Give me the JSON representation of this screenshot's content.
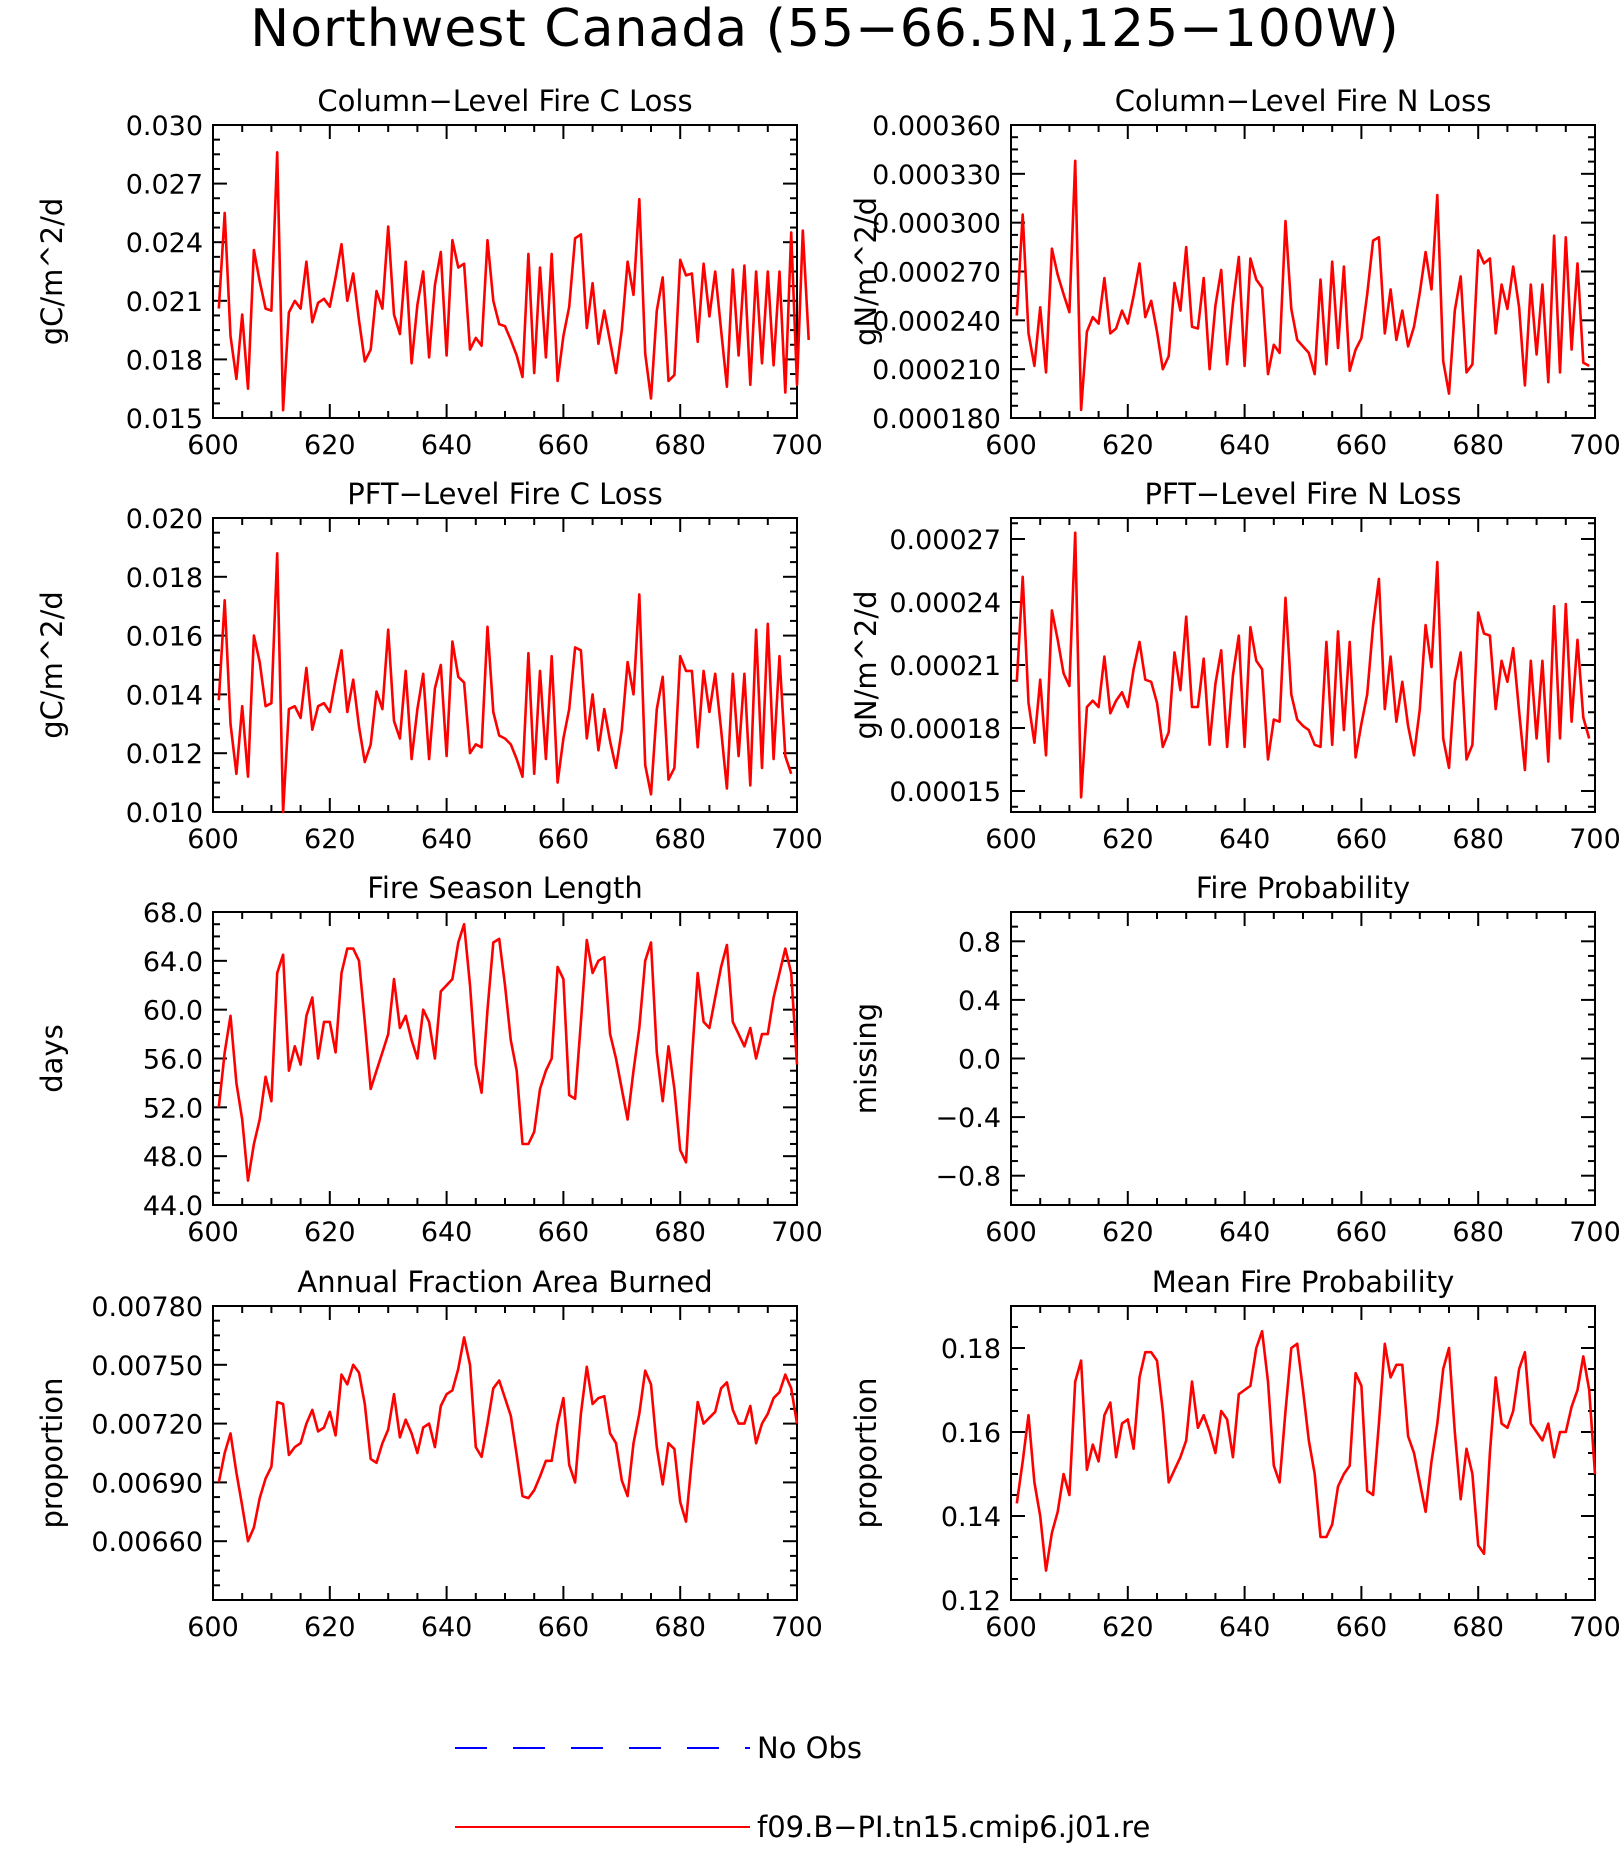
{
  "title": "Northwest Canada (55−66.5N,125−100W)",
  "colors": {
    "model": "#ff0000",
    "obs": "#0000ff",
    "axis": "#000000"
  },
  "legend": {
    "obs_label": "No Obs",
    "model_label": "f09.B−PI.tn15.cmip6.j01.re"
  },
  "chart_data": [
    {
      "type": "line",
      "title": "Column−Level Fire C Loss",
      "ylabel": "gC/m^2/d",
      "xlim": [
        600,
        700
      ],
      "xticks": [
        600,
        620,
        640,
        660,
        680,
        700
      ],
      "ylim": [
        0.015,
        0.03
      ],
      "yticks": [
        "0.015",
        "0.018",
        "0.021",
        "0.024",
        "0.027",
        "0.030"
      ],
      "x_start": 601,
      "series": [
        {
          "values": [
            0.0206,
            0.0255,
            0.0192,
            0.017,
            0.0203,
            0.0165,
            0.0236,
            0.022,
            0.0206,
            0.0205,
            0.0286,
            0.0154,
            0.0204,
            0.021,
            0.0206,
            0.023,
            0.0199,
            0.0209,
            0.0211,
            0.0207,
            0.0222,
            0.0239,
            0.021,
            0.0224,
            0.02,
            0.0179,
            0.0185,
            0.0215,
            0.0206,
            0.0248,
            0.0203,
            0.0193,
            0.023,
            0.0178,
            0.0208,
            0.0225,
            0.0181,
            0.0218,
            0.0235,
            0.0182,
            0.0241,
            0.0227,
            0.0229,
            0.0185,
            0.0191,
            0.0187,
            0.0241,
            0.021,
            0.0198,
            0.0197,
            0.019,
            0.0182,
            0.0171,
            0.0234,
            0.0173,
            0.0227,
            0.0181,
            0.0234,
            0.0169,
            0.0192,
            0.0207,
            0.0242,
            0.0244,
            0.0196,
            0.0219,
            0.0188,
            0.0205,
            0.0189,
            0.0173,
            0.0195,
            0.023,
            0.0213,
            0.0262,
            0.0183,
            0.016,
            0.0205,
            0.0222,
            0.0169,
            0.0172,
            0.0231,
            0.0223,
            0.0224,
            0.0189,
            0.0229,
            0.0202,
            0.0225,
            0.0195,
            0.0166,
            0.0226,
            0.0182,
            0.0228,
            0.0167,
            0.0225,
            0.0178,
            0.0225,
            0.0177,
            0.0225,
            0.0163,
            0.0245,
            0.0167,
            0.0246,
            0.019
          ]
        }
      ]
    },
    {
      "type": "line",
      "title": "Column−Level Fire N Loss",
      "ylabel": "gN/m^2/d",
      "xlim": [
        600,
        700
      ],
      "xticks": [
        600,
        620,
        640,
        660,
        680,
        700
      ],
      "ylim": [
        0.00018,
        0.00036
      ],
      "yticks": [
        "0.000180",
        "0.000210",
        "0.000240",
        "0.000270",
        "0.000300",
        "0.000330",
        "0.000360"
      ],
      "x_start": 601,
      "series": [
        {
          "values": [
            0.000243,
            0.000305,
            0.000232,
            0.000212,
            0.000248,
            0.000208,
            0.000284,
            0.000268,
            0.000256,
            0.000245,
            0.000338,
            0.000185,
            0.000233,
            0.000242,
            0.000238,
            0.000266,
            0.000232,
            0.000235,
            0.000246,
            0.000238,
            0.000255,
            0.000275,
            0.000242,
            0.000252,
            0.000233,
            0.00021,
            0.000218,
            0.000263,
            0.000246,
            0.000285,
            0.000236,
            0.000235,
            0.000266,
            0.00021,
            0.000249,
            0.000271,
            0.000213,
            0.00025,
            0.000279,
            0.000212,
            0.000278,
            0.000265,
            0.00026,
            0.000207,
            0.000225,
            0.00022,
            0.000301,
            0.000247,
            0.000228,
            0.000224,
            0.00022,
            0.000207,
            0.000265,
            0.000213,
            0.000276,
            0.000223,
            0.000273,
            0.000209,
            0.000222,
            0.000229,
            0.000256,
            0.000289,
            0.000291,
            0.000232,
            0.000259,
            0.000228,
            0.000246,
            0.000224,
            0.000236,
            0.000257,
            0.000282,
            0.000259,
            0.000317,
            0.000215,
            0.000195,
            0.000246,
            0.000267,
            0.000208,
            0.000213,
            0.000283,
            0.000275,
            0.000278,
            0.000232,
            0.000262,
            0.000247,
            0.000273,
            0.000248,
            0.0002,
            0.000262,
            0.000219,
            0.000262,
            0.000202,
            0.000292,
            0.000208,
            0.000291,
            0.000222,
            0.000275,
            0.000214,
            0.000212
          ]
        }
      ]
    },
    {
      "type": "line",
      "title": "PFT−Level Fire C Loss",
      "ylabel": "gC/m^2/d",
      "xlim": [
        600,
        700
      ],
      "xticks": [
        600,
        620,
        640,
        660,
        680,
        700
      ],
      "ylim": [
        0.01,
        0.02
      ],
      "yticks": [
        "0.010",
        "0.012",
        "0.014",
        "0.016",
        "0.018",
        "0.020"
      ],
      "x_start": 601,
      "series": [
        {
          "values": [
            0.0138,
            0.0172,
            0.013,
            0.0113,
            0.0136,
            0.0112,
            0.016,
            0.0151,
            0.0136,
            0.0137,
            0.0188,
            0.01,
            0.0135,
            0.0136,
            0.0132,
            0.0149,
            0.0128,
            0.0136,
            0.0137,
            0.0134,
            0.0145,
            0.0155,
            0.0134,
            0.0145,
            0.0129,
            0.0117,
            0.0123,
            0.0141,
            0.0135,
            0.0162,
            0.0131,
            0.0125,
            0.0148,
            0.0118,
            0.0135,
            0.0147,
            0.0118,
            0.0142,
            0.015,
            0.0119,
            0.0158,
            0.0146,
            0.0144,
            0.012,
            0.0123,
            0.0122,
            0.0163,
            0.0134,
            0.0126,
            0.0125,
            0.0123,
            0.0118,
            0.0112,
            0.0154,
            0.0113,
            0.0148,
            0.0118,
            0.0153,
            0.011,
            0.0125,
            0.0135,
            0.0156,
            0.0155,
            0.0125,
            0.014,
            0.0121,
            0.0135,
            0.0124,
            0.0115,
            0.0128,
            0.0151,
            0.014,
            0.0174,
            0.0116,
            0.0106,
            0.0135,
            0.0146,
            0.0111,
            0.0115,
            0.0153,
            0.0148,
            0.0148,
            0.0122,
            0.0148,
            0.0134,
            0.0147,
            0.0128,
            0.0108,
            0.0147,
            0.0119,
            0.0147,
            0.0109,
            0.0162,
            0.0115,
            0.0164,
            0.0118,
            0.0153,
            0.0119,
            0.0113
          ]
        }
      ]
    },
    {
      "type": "line",
      "title": "PFT−Level Fire N Loss",
      "ylabel": "gN/m^2/d",
      "xlim": [
        600,
        700
      ],
      "xticks": [
        600,
        620,
        640,
        660,
        680,
        700
      ],
      "ylim": [
        0.00014,
        0.00028
      ],
      "yticks": [
        "0.00015",
        "0.00018",
        "0.00021",
        "0.00024",
        "0.00027"
      ],
      "x_start": 601,
      "series": [
        {
          "values": [
            0.000202,
            0.000252,
            0.000192,
            0.000173,
            0.000203,
            0.000167,
            0.000236,
            0.000222,
            0.000206,
            0.0002,
            0.000273,
            0.000147,
            0.00019,
            0.000193,
            0.00019,
            0.000214,
            0.000187,
            0.000193,
            0.000197,
            0.00019,
            0.000208,
            0.000221,
            0.000203,
            0.000202,
            0.000192,
            0.000171,
            0.000178,
            0.000216,
            0.000198,
            0.000233,
            0.00019,
            0.00019,
            0.000213,
            0.000172,
            0.000201,
            0.000217,
            0.000171,
            0.000205,
            0.000224,
            0.000171,
            0.000228,
            0.000212,
            0.000208,
            0.000165,
            0.000184,
            0.000183,
            0.000242,
            0.000196,
            0.000184,
            0.000181,
            0.000179,
            0.000172,
            0.000171,
            0.000221,
            0.000172,
            0.000226,
            0.000179,
            0.000221,
            0.000166,
            0.000182,
            0.000196,
            0.000229,
            0.000251,
            0.000189,
            0.000214,
            0.000183,
            0.000202,
            0.000181,
            0.000167,
            0.000189,
            0.000229,
            0.000209,
            0.000259,
            0.000175,
            0.000161,
            0.000202,
            0.000216,
            0.000165,
            0.000172,
            0.000235,
            0.000225,
            0.000224,
            0.000189,
            0.000212,
            0.000202,
            0.000218,
            0.000188,
            0.00016,
            0.000212,
            0.000175,
            0.000212,
            0.000164,
            0.000238,
            0.000175,
            0.000239,
            0.000183,
            0.000222,
            0.000185,
            0.000175
          ]
        }
      ]
    },
    {
      "type": "line",
      "title": "Fire Season Length",
      "ylabel": "days",
      "xlim": [
        600,
        700
      ],
      "xticks": [
        600,
        620,
        640,
        660,
        680,
        700
      ],
      "ylim": [
        44,
        68
      ],
      "yticks": [
        "44.0",
        "48.0",
        "52.0",
        "56.0",
        "60.0",
        "64.0",
        "68.0"
      ],
      "x_start": 601,
      "series": [
        {
          "values": [
            52.0,
            56.5,
            59.5,
            54,
            51,
            46,
            49,
            51,
            54.5,
            52.5,
            63,
            64.5,
            55,
            57,
            55.5,
            59.5,
            61,
            56,
            59,
            59,
            56.5,
            63,
            65,
            65,
            64,
            59,
            53.5,
            55,
            56.5,
            58,
            62.5,
            58.5,
            59.5,
            57.5,
            56,
            60,
            59,
            56,
            61.5,
            62,
            62.5,
            65.5,
            67,
            62,
            55.5,
            53.2,
            60,
            65.5,
            65.8,
            62,
            57.5,
            55,
            49,
            49,
            50,
            53.5,
            55,
            56,
            63.5,
            62.5,
            53,
            52.7,
            59,
            65.7,
            63,
            64,
            64.3,
            58,
            56,
            53.5,
            51,
            55,
            58.5,
            64,
            65.5,
            56.5,
            52.5,
            57,
            53.5,
            48.5,
            47.5,
            56,
            63,
            59,
            58.5,
            61,
            63.5,
            65.3,
            59,
            58,
            57,
            58.5,
            56,
            58,
            58,
            61,
            63,
            65,
            63,
            55.5
          ]
        }
      ]
    },
    {
      "type": "line",
      "title": "Fire Probability",
      "ylabel": "missing",
      "xlim": [
        600,
        700
      ],
      "xticks": [
        600,
        620,
        640,
        660,
        680,
        700
      ],
      "ylim": [
        -1,
        1
      ],
      "yticks": [
        "−0.8",
        "−0.4",
        "0.0",
        "0.4",
        "0.8"
      ],
      "series": []
    },
    {
      "type": "line",
      "title": "Annual Fraction Area Burned",
      "ylabel": "proportion",
      "xlim": [
        600,
        700
      ],
      "xticks": [
        600,
        620,
        640,
        660,
        680,
        700
      ],
      "ylim": [
        0.0063,
        0.0078
      ],
      "yticks": [
        "0.00660",
        "0.00690",
        "0.00720",
        "0.00750",
        "0.00780"
      ],
      "x_start": 601,
      "series": [
        {
          "values": [
            0.0069,
            0.00705,
            0.00715,
            0.00695,
            0.00678,
            0.0066,
            0.00667,
            0.00682,
            0.00692,
            0.00698,
            0.00731,
            0.0073,
            0.00704,
            0.00708,
            0.0071,
            0.0072,
            0.00727,
            0.00716,
            0.00718,
            0.00726,
            0.00714,
            0.00745,
            0.0074,
            0.0075,
            0.00746,
            0.0073,
            0.00702,
            0.007,
            0.0071,
            0.00717,
            0.00735,
            0.00713,
            0.00722,
            0.00715,
            0.00705,
            0.00718,
            0.0072,
            0.00708,
            0.00729,
            0.00735,
            0.00737,
            0.00748,
            0.00764,
            0.0075,
            0.00708,
            0.00703,
            0.0072,
            0.00738,
            0.00742,
            0.00733,
            0.00724,
            0.00704,
            0.00683,
            0.00682,
            0.00686,
            0.00693,
            0.00701,
            0.00701,
            0.0072,
            0.00733,
            0.00699,
            0.0069,
            0.00725,
            0.00749,
            0.0073,
            0.00733,
            0.00734,
            0.00715,
            0.0071,
            0.00691,
            0.00683,
            0.0071,
            0.00725,
            0.00747,
            0.0074,
            0.00708,
            0.00689,
            0.0071,
            0.00707,
            0.0068,
            0.0067,
            0.00702,
            0.00731,
            0.0072,
            0.00723,
            0.00726,
            0.00738,
            0.00741,
            0.00727,
            0.0072,
            0.0072,
            0.00729,
            0.0071,
            0.0072,
            0.00725,
            0.00733,
            0.00736,
            0.00745,
            0.00738,
            0.0072
          ]
        }
      ]
    },
    {
      "type": "line",
      "title": "Mean Fire Probability",
      "ylabel": "proportion",
      "xlim": [
        600,
        700
      ],
      "xticks": [
        600,
        620,
        640,
        660,
        680,
        700
      ],
      "ylim": [
        0.12,
        0.19
      ],
      "yticks": [
        "0.12",
        "0.14",
        "0.16",
        "0.18"
      ],
      "x_start": 601,
      "series": [
        {
          "values": [
            0.143,
            0.153,
            0.164,
            0.148,
            0.14,
            0.127,
            0.136,
            0.141,
            0.15,
            0.145,
            0.172,
            0.177,
            0.151,
            0.157,
            0.153,
            0.164,
            0.167,
            0.154,
            0.162,
            0.163,
            0.156,
            0.173,
            0.179,
            0.179,
            0.177,
            0.165,
            0.148,
            0.151,
            0.154,
            0.158,
            0.172,
            0.161,
            0.164,
            0.16,
            0.155,
            0.165,
            0.163,
            0.154,
            0.169,
            0.17,
            0.171,
            0.18,
            0.184,
            0.172,
            0.152,
            0.148,
            0.165,
            0.18,
            0.181,
            0.17,
            0.158,
            0.15,
            0.135,
            0.135,
            0.138,
            0.147,
            0.15,
            0.152,
            0.174,
            0.171,
            0.146,
            0.145,
            0.162,
            0.181,
            0.173,
            0.176,
            0.176,
            0.159,
            0.155,
            0.148,
            0.141,
            0.153,
            0.162,
            0.175,
            0.18,
            0.16,
            0.144,
            0.156,
            0.15,
            0.133,
            0.131,
            0.155,
            0.173,
            0.162,
            0.161,
            0.165,
            0.175,
            0.179,
            0.162,
            0.16,
            0.158,
            0.162,
            0.154,
            0.16,
            0.16,
            0.166,
            0.17,
            0.178,
            0.17,
            0.15
          ]
        }
      ]
    }
  ]
}
